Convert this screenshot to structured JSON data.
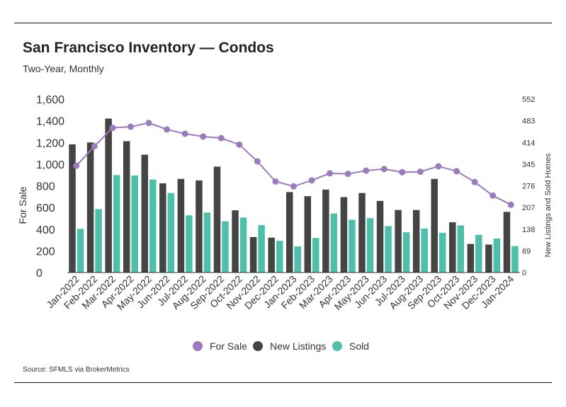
{
  "title": "San Francisco Inventory — Condos",
  "subtitle": "Two-Year, Monthly",
  "source": "Source:  SFMLS via BrokerMetrics",
  "colors": {
    "for_sale": "#9b7bbd",
    "new_listings": "#444444",
    "sold": "#4dbfaa"
  },
  "chart_data": {
    "type": "bar",
    "categories": [
      "Jan-2022",
      "Feb-2022",
      "Mar-2022",
      "Apr-2022",
      "May-2022",
      "Jun-2022",
      "Jul-2022",
      "Aug-2022",
      "Sep-2022",
      "Oct-2022",
      "Nov-2022",
      "Dec-2022",
      "Jan-2023",
      "Feb-2023",
      "Mar-2023",
      "Apr-2023",
      "May-2023",
      "Jun-2023",
      "Jul-2023",
      "Aug-2023",
      "Sep-2023",
      "Oct-2023",
      "Nov-2023",
      "Dec-2023",
      "Jan-2024"
    ],
    "ylabel": "For Sale",
    "y2label": "New Listings and Sold Homes",
    "ylim": [
      0,
      1600
    ],
    "y2lim": [
      0,
      552
    ],
    "yticks": [
      "0",
      "200",
      "400",
      "600",
      "800",
      "1,000",
      "1,200",
      "1,400",
      "1,600"
    ],
    "y2ticks": [
      "0",
      "69",
      "138",
      "207",
      "276",
      "345",
      "414",
      "483",
      "552"
    ],
    "series": [
      {
        "name": "For Sale",
        "type": "line",
        "axis": "left",
        "values": [
          985,
          1165,
          1335,
          1345,
          1380,
          1320,
          1280,
          1255,
          1240,
          1180,
          1025,
          840,
          795,
          850,
          915,
          910,
          940,
          955,
          925,
          930,
          980,
          935,
          835,
          710,
          625
        ]
      },
      {
        "name": "New Listings",
        "type": "bar",
        "axis": "right",
        "values": [
          408,
          414,
          490,
          418,
          375,
          284,
          298,
          293,
          337,
          198,
          113,
          111,
          256,
          243,
          264,
          240,
          253,
          228,
          199,
          199,
          298,
          160,
          91,
          89,
          193
        ]
      },
      {
        "name": "Sold",
        "type": "bar",
        "axis": "right",
        "values": [
          139,
          202,
          310,
          309,
          296,
          253,
          182,
          191,
          163,
          175,
          151,
          101,
          83,
          110,
          188,
          168,
          173,
          148,
          128,
          140,
          126,
          150,
          120,
          108,
          84
        ]
      }
    ],
    "legend_position": "bottom",
    "grid": false
  }
}
